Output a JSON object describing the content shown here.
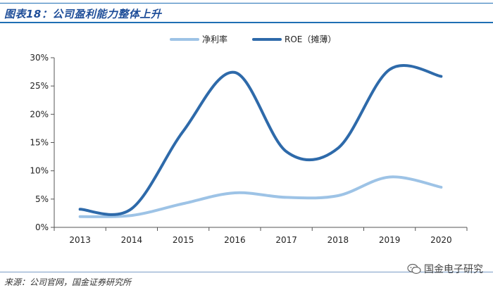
{
  "header": {
    "title": "图表18：公司盈利能力整体上升"
  },
  "footer": {
    "source": "来源：公司官网，国金证券研究所"
  },
  "watermark": {
    "text": "国金电子研究"
  },
  "chart_data": {
    "type": "line",
    "title": "",
    "xlabel": "",
    "ylabel": "",
    "categories": [
      "2013",
      "2014",
      "2015",
      "2016",
      "2017",
      "2018",
      "2019",
      "2020"
    ],
    "ylim": [
      0,
      30
    ],
    "yticks": [
      "0%",
      "5%",
      "10%",
      "15%",
      "20%",
      "25%",
      "30%"
    ],
    "ytick_values": [
      0,
      5,
      10,
      15,
      20,
      25,
      30
    ],
    "legend_position": "top-center",
    "grid": false,
    "smooth": true,
    "series": [
      {
        "name": "净利率",
        "color": "#9dc3e6",
        "values": [
          1.9,
          2.1,
          4.2,
          6.1,
          5.3,
          5.6,
          8.9,
          7.1
        ]
      },
      {
        "name": "ROE（摊薄）",
        "color": "#2e6aaa",
        "values": [
          3.2,
          3.3,
          17.0,
          27.4,
          13.4,
          14.0,
          27.9,
          26.7
        ]
      }
    ]
  }
}
